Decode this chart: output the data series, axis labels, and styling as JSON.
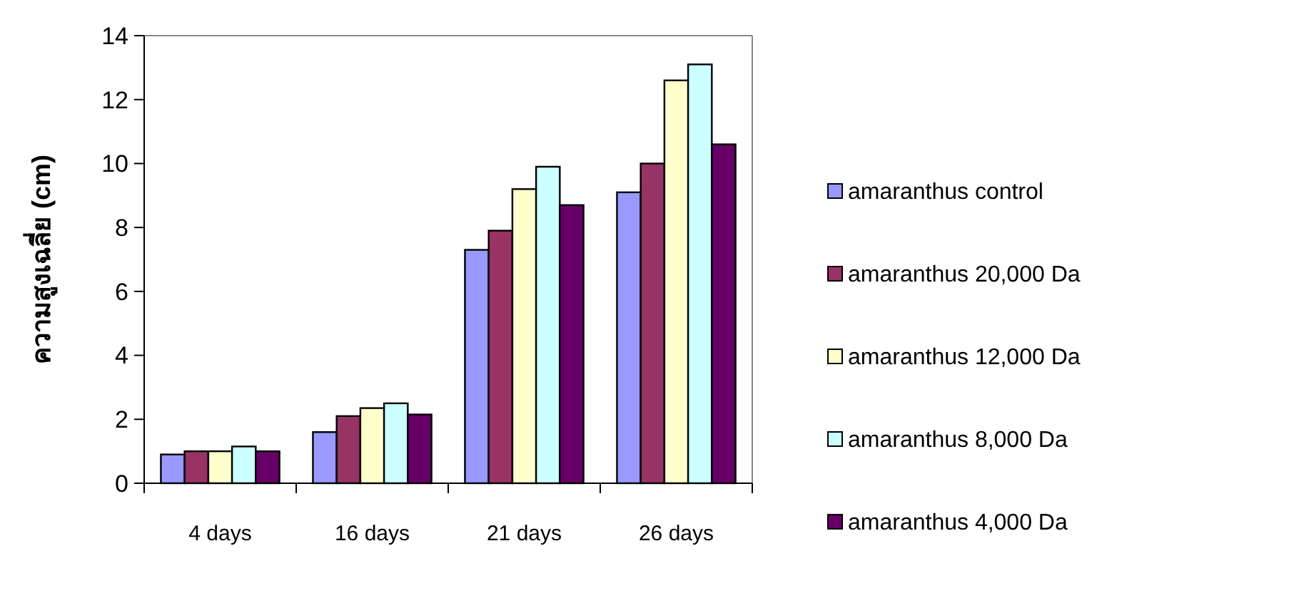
{
  "chart_data": {
    "type": "bar",
    "ylabel": "ความสูงเฉลี่ย (cm)",
    "categories": [
      "4 days",
      "16 days",
      "21 days",
      "26 days"
    ],
    "series": [
      {
        "name": "amaranthus control",
        "color": "#9999ff",
        "values": [
          0.9,
          1.6,
          7.3,
          9.1
        ]
      },
      {
        "name": "amaranthus 20,000 Da",
        "color": "#993366",
        "values": [
          1.0,
          2.1,
          7.9,
          10.0
        ]
      },
      {
        "name": "amaranthus 12,000 Da",
        "color": "#ffffcc",
        "values": [
          1.0,
          2.35,
          9.2,
          12.6
        ]
      },
      {
        "name": "amaranthus 8,000 Da",
        "color": "#ccffff",
        "values": [
          1.15,
          2.5,
          9.9,
          13.1
        ]
      },
      {
        "name": "amaranthus 4,000 Da",
        "color": "#660066",
        "values": [
          1.0,
          2.15,
          8.7,
          10.6
        ]
      }
    ],
    "ylim": [
      0,
      14
    ],
    "yticks": [
      0,
      2,
      4,
      6,
      8,
      10,
      12,
      14
    ],
    "grid": false,
    "legend": "right"
  }
}
